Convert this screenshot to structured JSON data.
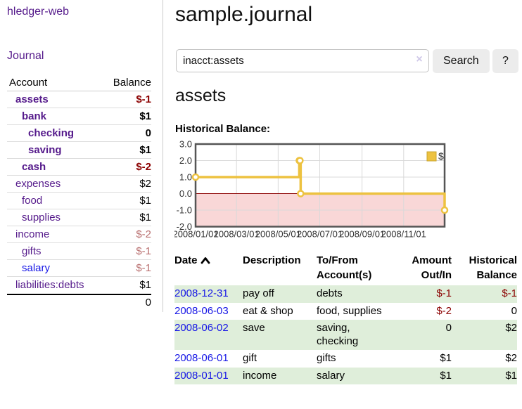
{
  "brand": "hledger-web",
  "nav": {
    "journal_label": "Journal"
  },
  "colors": {
    "link_purple": "#551A8B",
    "link_blue": "#1717e6",
    "negative_strong": "#8b0000",
    "negative_soft": "#b96f6f",
    "row_stripe_green": "#dfeeda",
    "series_yellow": "#edc240",
    "chart_border": "#555555",
    "grid_line": "#d9d9d9",
    "negative_region": "#f9d7d7",
    "zero_line": "#8b0000"
  },
  "sidebar": {
    "headers": {
      "account": "Account",
      "balance": "Balance"
    },
    "accounts": [
      {
        "name": "assets",
        "indent": 0,
        "bold": true,
        "balance": "$-1",
        "neg": "strong",
        "link": "purple"
      },
      {
        "name": "bank",
        "indent": 1,
        "bold": true,
        "balance": "$1",
        "neg": "none",
        "link": "purple"
      },
      {
        "name": "checking",
        "indent": 2,
        "bold": true,
        "balance": "0",
        "neg": "none",
        "link": "purple"
      },
      {
        "name": "saving",
        "indent": 2,
        "bold": true,
        "balance": "$1",
        "neg": "none",
        "link": "purple"
      },
      {
        "name": "cash",
        "indent": 1,
        "bold": true,
        "balance": "$-2",
        "neg": "strong",
        "link": "purple"
      },
      {
        "name": "expenses",
        "indent": 0,
        "bold": false,
        "balance": "$2",
        "neg": "none",
        "link": "purple"
      },
      {
        "name": "food",
        "indent": 1,
        "bold": false,
        "balance": "$1",
        "neg": "none",
        "link": "purple"
      },
      {
        "name": "supplies",
        "indent": 1,
        "bold": false,
        "balance": "$1",
        "neg": "none",
        "link": "purple"
      },
      {
        "name": "income",
        "indent": 0,
        "bold": false,
        "balance": "$-2",
        "neg": "soft",
        "link": "purple"
      },
      {
        "name": "gifts",
        "indent": 1,
        "bold": false,
        "balance": "$-1",
        "neg": "soft",
        "link": "purple"
      },
      {
        "name": "salary",
        "indent": 1,
        "bold": false,
        "balance": "$-1",
        "neg": "soft",
        "link": "blue"
      },
      {
        "name": "liabilities:debts",
        "indent": 0,
        "bold": false,
        "balance": "$1",
        "neg": "none",
        "link": "purple"
      }
    ],
    "total": "0"
  },
  "header": {
    "title": "sample.journal"
  },
  "search": {
    "value": "inacct:assets",
    "clear_icon": "×",
    "button_label": "Search",
    "help_label": "?"
  },
  "account_page": {
    "title": "assets",
    "chart_label": "Historical Balance:"
  },
  "chart_data": {
    "type": "line",
    "step": true,
    "title": "Historical Balance:",
    "series": [
      {
        "name": "$",
        "color": "#edc240",
        "x": [
          "2008-01-01",
          "2008-06-01",
          "2008-06-02",
          "2008-06-03",
          "2008-12-31"
        ],
        "y": [
          1,
          2,
          2,
          0,
          -1
        ]
      }
    ],
    "xlim": [
      "2008-01-01",
      "2008-12-31"
    ],
    "ylim": [
      -2,
      3
    ],
    "y_ticks": [
      3,
      2,
      1,
      0,
      -1,
      -2
    ],
    "y_tick_labels": [
      "3.0",
      "2.0",
      "1.0",
      "0.0",
      "-1.0",
      "-2.0"
    ],
    "x_ticks": [
      "2008-01-01",
      "2008-03-01",
      "2008-05-01",
      "2008-07-01",
      "2008-09-01",
      "2008-11-01"
    ],
    "x_tick_labels": [
      "2008/01/01",
      "2008/03/01",
      "2008/05/01",
      "2008/07/01",
      "2008/09/01",
      "2008/11/01"
    ],
    "legend": {
      "label": "$",
      "position": "top-right"
    },
    "grid": true
  },
  "register": {
    "columns": [
      {
        "line1": "Date",
        "line2": "",
        "align": "left",
        "sortable": true
      },
      {
        "line1": "Description",
        "line2": "",
        "align": "left",
        "sortable": false
      },
      {
        "line1": "To/From",
        "line2": "Account(s)",
        "align": "left",
        "sortable": false
      },
      {
        "line1": "Amount",
        "line2": "Out/In",
        "align": "right",
        "sortable": false
      },
      {
        "line1": "Historical",
        "line2": "Balance",
        "align": "right",
        "sortable": false
      }
    ],
    "rows": [
      {
        "date": "2008-12-31",
        "description": "pay off",
        "accounts": "debts",
        "amount": "$-1",
        "amount_neg": true,
        "balance": "$-1",
        "balance_neg": true
      },
      {
        "date": "2008-06-03",
        "description": "eat & shop",
        "accounts": "food, supplies",
        "amount": "$-2",
        "amount_neg": true,
        "balance": "0",
        "balance_neg": false
      },
      {
        "date": "2008-06-02",
        "description": "save",
        "accounts": "saving, checking",
        "amount": "0",
        "amount_neg": false,
        "balance": "$2",
        "balance_neg": false
      },
      {
        "date": "2008-06-01",
        "description": "gift",
        "accounts": "gifts",
        "amount": "$1",
        "amount_neg": false,
        "balance": "$2",
        "balance_neg": false
      },
      {
        "date": "2008-01-01",
        "description": "income",
        "accounts": "salary",
        "amount": "$1",
        "amount_neg": false,
        "balance": "$1",
        "balance_neg": false
      }
    ]
  }
}
